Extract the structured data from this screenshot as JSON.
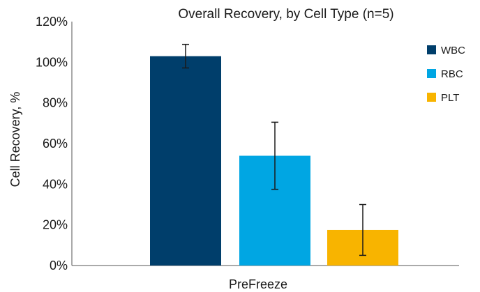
{
  "chart_data": {
    "type": "bar",
    "title": "Overall Recovery, by Cell Type (n=5)",
    "xlabel": "PreFreeze",
    "ylabel": "Cell Recovery, %",
    "categories": [
      "PreFreeze"
    ],
    "ylim": [
      0,
      120
    ],
    "yticks": [
      0,
      20,
      40,
      60,
      80,
      100,
      120
    ],
    "ytick_labels": [
      "0%",
      "20%",
      "40%",
      "60%",
      "80%",
      "100%",
      "120%"
    ],
    "grid": false,
    "legend_position": "right",
    "series": [
      {
        "name": "WBC",
        "values": [
          103
        ],
        "error": [
          5.8
        ],
        "color": "#003e6b"
      },
      {
        "name": "RBC",
        "values": [
          54
        ],
        "error": [
          16.5
        ],
        "color": "#00a6e3"
      },
      {
        "name": "PLT",
        "values": [
          17.5
        ],
        "error": [
          12.5
        ],
        "color": "#f8b400"
      }
    ]
  }
}
